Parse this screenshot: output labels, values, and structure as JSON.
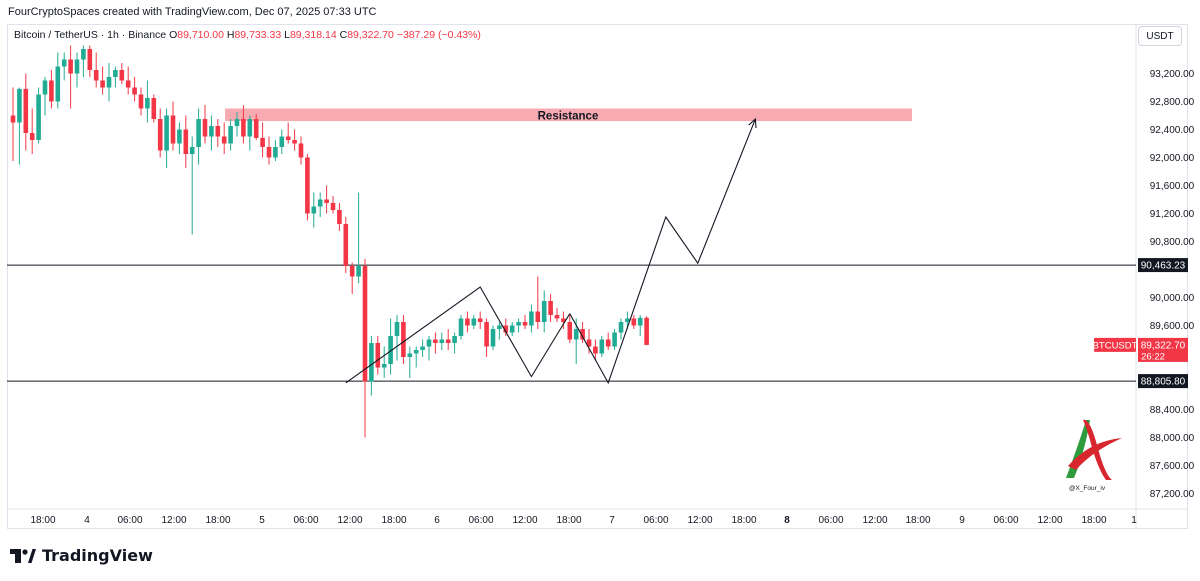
{
  "header": {
    "attribution": "FourCryptoSpaces created with TradingView.com, Dec 07, 2025 07:33 UTC"
  },
  "legend": {
    "symbol": "Bitcoin / TetherUS · 1h · Binance",
    "o_label": "O",
    "o_value": "89,710.00",
    "h_label": "H",
    "h_value": "89,733.33",
    "l_label": "L",
    "l_value": "89,318.14",
    "c_label": "C",
    "c_value": "89,322.70",
    "change": "−387.29 (−0.43%)"
  },
  "currency_button": "USDT",
  "footer": {
    "brand": "TradingView"
  },
  "watermark": {
    "handle": "@X_Four_iv"
  },
  "colors": {
    "up": "#22ab94",
    "down": "#f23645",
    "resistance_fill": "#f7a6ad",
    "line": "#131722",
    "axis_text": "#131722"
  },
  "chart_data": {
    "type": "candlestick",
    "symbol": "BTCUSDT",
    "interval": "1h",
    "ylim": [
      87000,
      93600
    ],
    "y_ticks": [
      {
        "value": 87200,
        "label": "87,200.00"
      },
      {
        "value": 87600,
        "label": "87,600.00"
      },
      {
        "value": 88000,
        "label": "88,000.00"
      },
      {
        "value": 88400,
        "label": "88,400.00"
      },
      {
        "value": 89600,
        "label": "89,600.00"
      },
      {
        "value": 90000,
        "label": "90,000.00"
      },
      {
        "value": 90800,
        "label": "90,800.00"
      },
      {
        "value": 91200,
        "label": "91,200.00"
      },
      {
        "value": 91600,
        "label": "91,600.00"
      },
      {
        "value": 92000,
        "label": "92,000.00"
      },
      {
        "value": 92400,
        "label": "92,400.00"
      },
      {
        "value": 92800,
        "label": "92,800.00"
      },
      {
        "value": 93200,
        "label": "93,200.00"
      }
    ],
    "x_ticks": [
      {
        "label": "18:00",
        "bold": false
      },
      {
        "label": "4",
        "bold": false
      },
      {
        "label": "06:00",
        "bold": false
      },
      {
        "label": "12:00",
        "bold": false
      },
      {
        "label": "18:00",
        "bold": false
      },
      {
        "label": "5",
        "bold": false
      },
      {
        "label": "06:00",
        "bold": false
      },
      {
        "label": "12:00",
        "bold": false
      },
      {
        "label": "18:00",
        "bold": false
      },
      {
        "label": "6",
        "bold": false
      },
      {
        "label": "06:00",
        "bold": false
      },
      {
        "label": "12:00",
        "bold": false
      },
      {
        "label": "18:00",
        "bold": false
      },
      {
        "label": "7",
        "bold": false
      },
      {
        "label": "06:00",
        "bold": false
      },
      {
        "label": "12:00",
        "bold": false
      },
      {
        "label": "18:00",
        "bold": false
      },
      {
        "label": "8",
        "bold": true
      },
      {
        "label": "06:00",
        "bold": false
      },
      {
        "label": "12:00",
        "bold": false
      },
      {
        "label": "18:00",
        "bold": false
      },
      {
        "label": "9",
        "bold": false
      },
      {
        "label": "06:00",
        "bold": false
      },
      {
        "label": "12:00",
        "bold": false
      },
      {
        "label": "18:00",
        "bold": false
      },
      {
        "label": "1",
        "bold": false
      }
    ],
    "horizontal_levels": [
      {
        "value": 90463.23,
        "label": "90,463.23"
      },
      {
        "value": 88805.8,
        "label": "88,805.80"
      }
    ],
    "resistance_zone": {
      "label": "Resistance",
      "low": 92520,
      "high": 92700
    },
    "last_price": {
      "symbol": "BTCUSDT",
      "value": 89322.7,
      "label": "89,322.70",
      "countdown": "26:22"
    },
    "candles": [
      {
        "o": 92600,
        "h": 93000,
        "l": 91950,
        "c": 92500
      },
      {
        "o": 92500,
        "h": 93000,
        "l": 91900,
        "c": 92980
      },
      {
        "o": 92980,
        "h": 93200,
        "l": 92100,
        "c": 92350
      },
      {
        "o": 92350,
        "h": 92700,
        "l": 92050,
        "c": 92250
      },
      {
        "o": 92250,
        "h": 93000,
        "l": 92200,
        "c": 92900
      },
      {
        "o": 92900,
        "h": 93150,
        "l": 92600,
        "c": 93100
      },
      {
        "o": 93100,
        "h": 93250,
        "l": 92700,
        "c": 92800
      },
      {
        "o": 92800,
        "h": 93500,
        "l": 92700,
        "c": 93300
      },
      {
        "o": 93300,
        "h": 93500,
        "l": 93100,
        "c": 93400
      },
      {
        "o": 93400,
        "h": 93600,
        "l": 92700,
        "c": 93200
      },
      {
        "o": 93200,
        "h": 93500,
        "l": 93000,
        "c": 93400
      },
      {
        "o": 93400,
        "h": 93600,
        "l": 93150,
        "c": 93550
      },
      {
        "o": 93550,
        "h": 93600,
        "l": 93150,
        "c": 93250
      },
      {
        "o": 93250,
        "h": 93500,
        "l": 93000,
        "c": 93100
      },
      {
        "o": 93100,
        "h": 93300,
        "l": 92900,
        "c": 93000
      },
      {
        "o": 93000,
        "h": 93350,
        "l": 92800,
        "c": 93150
      },
      {
        "o": 93150,
        "h": 93300,
        "l": 93000,
        "c": 93250
      },
      {
        "o": 93250,
        "h": 93350,
        "l": 93050,
        "c": 93100
      },
      {
        "o": 93100,
        "h": 93300,
        "l": 92900,
        "c": 93000
      },
      {
        "o": 93000,
        "h": 93150,
        "l": 92800,
        "c": 92900
      },
      {
        "o": 92900,
        "h": 93000,
        "l": 92600,
        "c": 92700
      },
      {
        "o": 92700,
        "h": 93100,
        "l": 92500,
        "c": 92850
      },
      {
        "o": 92850,
        "h": 92900,
        "l": 92500,
        "c": 92550
      },
      {
        "o": 92550,
        "h": 92700,
        "l": 92000,
        "c": 92100
      },
      {
        "o": 92100,
        "h": 92700,
        "l": 91850,
        "c": 92600
      },
      {
        "o": 92600,
        "h": 92800,
        "l": 92100,
        "c": 92200
      },
      {
        "o": 92200,
        "h": 92500,
        "l": 92050,
        "c": 92400
      },
      {
        "o": 92400,
        "h": 92600,
        "l": 91850,
        "c": 92050
      },
      {
        "o": 92050,
        "h": 92300,
        "l": 90900,
        "c": 92150
      },
      {
        "o": 92150,
        "h": 92700,
        "l": 91900,
        "c": 92550
      },
      {
        "o": 92550,
        "h": 92750,
        "l": 92200,
        "c": 92300
      },
      {
        "o": 92300,
        "h": 92600,
        "l": 92100,
        "c": 92450
      },
      {
        "o": 92450,
        "h": 92550,
        "l": 92150,
        "c": 92300
      },
      {
        "o": 92300,
        "h": 92500,
        "l": 92050,
        "c": 92200
      },
      {
        "o": 92200,
        "h": 92550,
        "l": 92100,
        "c": 92450
      },
      {
        "o": 92450,
        "h": 92650,
        "l": 92300,
        "c": 92550
      },
      {
        "o": 92550,
        "h": 92750,
        "l": 92200,
        "c": 92300
      },
      {
        "o": 92300,
        "h": 92600,
        "l": 92100,
        "c": 92550
      },
      {
        "o": 92550,
        "h": 92620,
        "l": 92250,
        "c": 92280
      },
      {
        "o": 92280,
        "h": 92500,
        "l": 92000,
        "c": 92150
      },
      {
        "o": 92150,
        "h": 92300,
        "l": 91900,
        "c": 92000
      },
      {
        "o": 92000,
        "h": 92250,
        "l": 91950,
        "c": 92150
      },
      {
        "o": 92150,
        "h": 92400,
        "l": 92050,
        "c": 92300
      },
      {
        "o": 92300,
        "h": 92500,
        "l": 92200,
        "c": 92250
      },
      {
        "o": 92250,
        "h": 92400,
        "l": 92100,
        "c": 92200
      },
      {
        "o": 92200,
        "h": 92300,
        "l": 91900,
        "c": 92000
      },
      {
        "o": 92000,
        "h": 92050,
        "l": 91100,
        "c": 91200
      },
      {
        "o": 91200,
        "h": 91500,
        "l": 91000,
        "c": 91300
      },
      {
        "o": 91300,
        "h": 91500,
        "l": 91150,
        "c": 91400
      },
      {
        "o": 91400,
        "h": 91600,
        "l": 91200,
        "c": 91350
      },
      {
        "o": 91350,
        "h": 91450,
        "l": 91200,
        "c": 91250
      },
      {
        "o": 91250,
        "h": 91350,
        "l": 90950,
        "c": 91050
      },
      {
        "o": 91050,
        "h": 91150,
        "l": 90350,
        "c": 90450
      },
      {
        "o": 90450,
        "h": 90500,
        "l": 90050,
        "c": 90300
      },
      {
        "o": 90300,
        "h": 91500,
        "l": 90200,
        "c": 90450
      },
      {
        "o": 90450,
        "h": 90550,
        "l": 88000,
        "c": 88800
      },
      {
        "o": 88800,
        "h": 89450,
        "l": 88600,
        "c": 89350
      },
      {
        "o": 89350,
        "h": 89450,
        "l": 88900,
        "c": 89000
      },
      {
        "o": 89000,
        "h": 89300,
        "l": 88850,
        "c": 89050
      },
      {
        "o": 89050,
        "h": 89700,
        "l": 88900,
        "c": 89450
      },
      {
        "o": 89450,
        "h": 89750,
        "l": 89100,
        "c": 89650
      },
      {
        "o": 89650,
        "h": 89750,
        "l": 89050,
        "c": 89150
      },
      {
        "o": 89150,
        "h": 89300,
        "l": 88850,
        "c": 89200
      },
      {
        "o": 89200,
        "h": 89300,
        "l": 89000,
        "c": 89250
      },
      {
        "o": 89250,
        "h": 89400,
        "l": 89150,
        "c": 89300
      },
      {
        "o": 89300,
        "h": 89450,
        "l": 89100,
        "c": 89400
      },
      {
        "o": 89400,
        "h": 89500,
        "l": 89200,
        "c": 89350
      },
      {
        "o": 89350,
        "h": 89500,
        "l": 89250,
        "c": 89400
      },
      {
        "o": 89400,
        "h": 89550,
        "l": 89250,
        "c": 89350
      },
      {
        "o": 89350,
        "h": 89500,
        "l": 89200,
        "c": 89450
      },
      {
        "o": 89450,
        "h": 89750,
        "l": 89400,
        "c": 89700
      },
      {
        "o": 89700,
        "h": 89800,
        "l": 89500,
        "c": 89600
      },
      {
        "o": 89600,
        "h": 89750,
        "l": 89550,
        "c": 89700
      },
      {
        "o": 89700,
        "h": 89800,
        "l": 89550,
        "c": 89650
      },
      {
        "o": 89650,
        "h": 89700,
        "l": 89150,
        "c": 89300
      },
      {
        "o": 89300,
        "h": 89600,
        "l": 89250,
        "c": 89550
      },
      {
        "o": 89550,
        "h": 89650,
        "l": 89400,
        "c": 89600
      },
      {
        "o": 89600,
        "h": 89700,
        "l": 89450,
        "c": 89500
      },
      {
        "o": 89500,
        "h": 89650,
        "l": 89450,
        "c": 89600
      },
      {
        "o": 89600,
        "h": 89700,
        "l": 89500,
        "c": 89650
      },
      {
        "o": 89650,
        "h": 89750,
        "l": 89550,
        "c": 89600
      },
      {
        "o": 89600,
        "h": 89900,
        "l": 89500,
        "c": 89800
      },
      {
        "o": 89800,
        "h": 90300,
        "l": 89550,
        "c": 89650
      },
      {
        "o": 89650,
        "h": 90100,
        "l": 89500,
        "c": 89950
      },
      {
        "o": 89950,
        "h": 90050,
        "l": 89650,
        "c": 89750
      },
      {
        "o": 89750,
        "h": 89850,
        "l": 89650,
        "c": 89700
      },
      {
        "o": 89700,
        "h": 89800,
        "l": 89550,
        "c": 89650
      },
      {
        "o": 89650,
        "h": 89750,
        "l": 89350,
        "c": 89400
      },
      {
        "o": 89400,
        "h": 89700,
        "l": 89050,
        "c": 89550
      },
      {
        "o": 89550,
        "h": 89650,
        "l": 89350,
        "c": 89400
      },
      {
        "o": 89400,
        "h": 89550,
        "l": 89200,
        "c": 89300
      },
      {
        "o": 89300,
        "h": 89400,
        "l": 89100,
        "c": 89200
      },
      {
        "o": 89200,
        "h": 89450,
        "l": 89150,
        "c": 89400
      },
      {
        "o": 89400,
        "h": 89500,
        "l": 89250,
        "c": 89300
      },
      {
        "o": 89300,
        "h": 89550,
        "l": 89250,
        "c": 89500
      },
      {
        "o": 89500,
        "h": 89700,
        "l": 89400,
        "c": 89650
      },
      {
        "o": 89650,
        "h": 89800,
        "l": 89550,
        "c": 89700
      },
      {
        "o": 89700,
        "h": 89750,
        "l": 89550,
        "c": 89600
      },
      {
        "o": 89600,
        "h": 89750,
        "l": 89450,
        "c": 89710
      },
      {
        "o": 89710,
        "h": 89733.33,
        "l": 89318.14,
        "c": 89322.7
      }
    ],
    "pattern_path": [
      {
        "t": 52,
        "p": 88780
      },
      {
        "t": 73,
        "p": 90150
      },
      {
        "t": 81,
        "p": 88870
      },
      {
        "t": 87,
        "p": 89770
      }
    ],
    "projection_path": [
      {
        "t": 87,
        "p": 89770
      },
      {
        "t": 93,
        "p": 88780
      },
      {
        "t": 102,
        "p": 91150
      },
      {
        "t": 107,
        "p": 90490
      },
      {
        "t": 116,
        "p": 92550
      }
    ]
  }
}
